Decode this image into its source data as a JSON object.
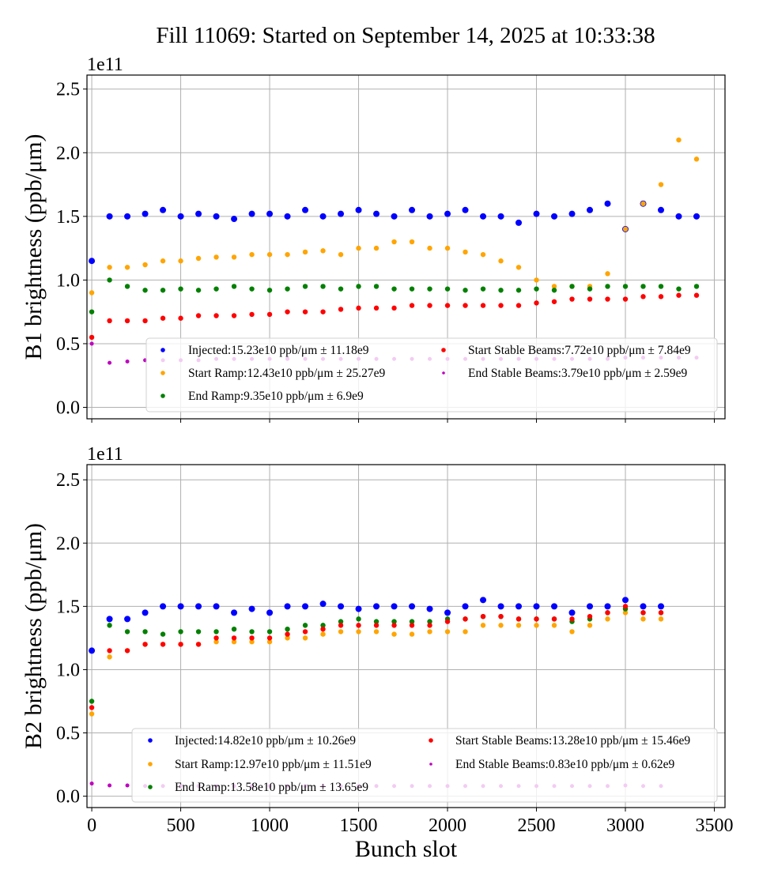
{
  "title": "Fill 11069: Started on September 14, 2025 at 10:33:38",
  "colors": {
    "Injected": "#0000ff",
    "Start Ramp": "#ffa500",
    "End Ramp": "#008000",
    "Start Stable Beams": "#ff0000",
    "End Stable Beams": "#bf00bf",
    "grid": "#b0b0b0"
  },
  "chart_data": [
    {
      "type": "scatter",
      "title": "",
      "ylabel": "B1 brightness (ppb/μm)",
      "xlabel": "",
      "y_offset_label": "1e11",
      "xlim": [
        -27,
        3560
      ],
      "ylim": [
        -0.09,
        2.61
      ],
      "yticks": [
        "0.0",
        "0.5",
        "1.0",
        "1.5",
        "2.0",
        "2.5"
      ],
      "xticks": [
        0,
        500,
        1000,
        1500,
        2000,
        2500,
        3000,
        3500
      ],
      "xtick_labels_shown": false,
      "grid": true,
      "legend_placement": "lower-right",
      "x": [
        0,
        100,
        200,
        300,
        400,
        500,
        600,
        700,
        800,
        900,
        1000,
        1100,
        1200,
        1300,
        1400,
        1500,
        1600,
        1700,
        1800,
        1900,
        2000,
        2100,
        2200,
        2300,
        2400,
        2500,
        2600,
        2700,
        2800,
        2900,
        3000,
        3100,
        3200,
        3300,
        3400
      ],
      "series": [
        {
          "name": "Injected",
          "legend": "Injected:15.23e10 ppb/μm ± 11.18e9",
          "values": [
            1.15,
            1.5,
            1.5,
            1.52,
            1.55,
            1.5,
            1.52,
            1.5,
            1.48,
            1.52,
            1.52,
            1.5,
            1.55,
            1.5,
            1.52,
            1.55,
            1.52,
            1.5,
            1.55,
            1.5,
            1.52,
            1.55,
            1.5,
            1.5,
            1.45,
            1.52,
            1.5,
            1.52,
            1.55,
            1.6,
            1.4,
            1.6,
            1.55,
            1.5,
            1.5
          ]
        },
        {
          "name": "Start Ramp",
          "legend": "Start Ramp:12.43e10 ppb/μm ± 25.27e9",
          "values": [
            0.9,
            1.1,
            1.1,
            1.12,
            1.15,
            1.15,
            1.17,
            1.18,
            1.18,
            1.2,
            1.2,
            1.2,
            1.22,
            1.23,
            1.2,
            1.25,
            1.25,
            1.3,
            1.3,
            1.25,
            1.25,
            1.22,
            1.2,
            1.15,
            1.1,
            1.0,
            0.95,
            0.95,
            0.95,
            1.05,
            1.4,
            1.6,
            1.75,
            2.1,
            1.95
          ]
        },
        {
          "name": "End Ramp",
          "legend": "End Ramp:9.35e10 ppb/μm ± 6.9e9",
          "values": [
            0.75,
            1.0,
            0.95,
            0.92,
            0.92,
            0.93,
            0.92,
            0.93,
            0.95,
            0.93,
            0.92,
            0.93,
            0.95,
            0.95,
            0.93,
            0.95,
            0.95,
            0.93,
            0.93,
            0.93,
            0.93,
            0.92,
            0.93,
            0.92,
            0.92,
            0.93,
            0.92,
            0.95,
            0.93,
            0.95,
            0.95,
            0.95,
            0.95,
            0.93,
            0.95
          ]
        },
        {
          "name": "Start Stable Beams",
          "legend": "Start Stable Beams:7.72e10 ppb/μm ± 7.84e9",
          "values": [
            0.55,
            0.68,
            0.68,
            0.68,
            0.7,
            0.7,
            0.72,
            0.72,
            0.72,
            0.73,
            0.73,
            0.75,
            0.75,
            0.75,
            0.77,
            0.78,
            0.78,
            0.78,
            0.8,
            0.8,
            0.8,
            0.8,
            0.8,
            0.8,
            0.8,
            0.82,
            0.83,
            0.85,
            0.85,
            0.85,
            0.85,
            0.87,
            0.87,
            0.88,
            0.88
          ]
        },
        {
          "name": "End Stable Beams",
          "legend": "End Stable Beams:3.79e10 ppb/μm ± 2.59e9",
          "values": [
            0.5,
            0.35,
            0.36,
            0.37,
            0.37,
            0.37,
            0.37,
            0.38,
            0.38,
            0.38,
            0.38,
            0.38,
            0.38,
            0.38,
            0.38,
            0.38,
            0.38,
            0.38,
            0.38,
            0.38,
            0.38,
            0.38,
            0.38,
            0.38,
            0.38,
            0.38,
            0.38,
            0.38,
            0.38,
            0.38,
            0.39,
            0.39,
            0.39,
            0.39,
            0.39
          ]
        }
      ]
    },
    {
      "type": "scatter",
      "title": "",
      "ylabel": "B2 brightness (ppb/μm)",
      "xlabel": "Bunch slot",
      "y_offset_label": "1e11",
      "xlim": [
        -27,
        3560
      ],
      "ylim": [
        -0.09,
        2.62
      ],
      "yticks": [
        "0.0",
        "0.5",
        "1.0",
        "1.5",
        "2.0",
        "2.5"
      ],
      "xticks": [
        0,
        500,
        1000,
        1500,
        2000,
        2500,
        3000,
        3500
      ],
      "xtick_labels_shown": true,
      "grid": true,
      "legend_placement": "lower-right",
      "x": [
        0,
        100,
        200,
        300,
        400,
        500,
        600,
        700,
        800,
        900,
        1000,
        1100,
        1200,
        1300,
        1400,
        1500,
        1600,
        1700,
        1800,
        1900,
        2000,
        2100,
        2200,
        2300,
        2400,
        2500,
        2600,
        2700,
        2800,
        2900,
        3000,
        3100,
        3200
      ],
      "series": [
        {
          "name": "Injected",
          "legend": "Injected:14.82e10 ppb/μm ± 10.26e9",
          "values": [
            1.15,
            1.4,
            1.4,
            1.45,
            1.5,
            1.5,
            1.5,
            1.5,
            1.45,
            1.48,
            1.45,
            1.5,
            1.5,
            1.52,
            1.5,
            1.48,
            1.5,
            1.5,
            1.5,
            1.48,
            1.45,
            1.5,
            1.55,
            1.5,
            1.5,
            1.5,
            1.5,
            1.45,
            1.5,
            1.5,
            1.55,
            1.5,
            1.5
          ]
        },
        {
          "name": "Start Ramp",
          "legend": "Start Ramp:12.97e10 ppb/μm ± 11.51e9",
          "values": [
            0.65,
            1.1,
            1.15,
            1.2,
            1.2,
            1.2,
            1.2,
            1.22,
            1.22,
            1.22,
            1.22,
            1.25,
            1.25,
            1.28,
            1.3,
            1.3,
            1.3,
            1.28,
            1.28,
            1.3,
            1.3,
            1.3,
            1.35,
            1.35,
            1.35,
            1.35,
            1.35,
            1.3,
            1.35,
            1.4,
            1.45,
            1.4,
            1.4
          ]
        },
        {
          "name": "End Ramp",
          "legend": "End Ramp:13.58e10 ppb/μm ± 13.65e9",
          "values": [
            0.75,
            1.35,
            1.3,
            1.3,
            1.28,
            1.3,
            1.3,
            1.3,
            1.32,
            1.3,
            1.3,
            1.32,
            1.35,
            1.35,
            1.38,
            1.4,
            1.38,
            1.38,
            1.38,
            1.38,
            1.4,
            1.4,
            1.42,
            1.42,
            1.4,
            1.4,
            1.4,
            1.38,
            1.4,
            1.45,
            1.48,
            1.45,
            1.45
          ]
        },
        {
          "name": "Start Stable Beams",
          "legend": "Start Stable Beams:13.28e10 ppb/μm ± 15.46e9",
          "values": [
            0.7,
            1.15,
            1.15,
            1.2,
            1.2,
            1.2,
            1.2,
            1.25,
            1.25,
            1.25,
            1.25,
            1.28,
            1.3,
            1.32,
            1.35,
            1.35,
            1.35,
            1.35,
            1.35,
            1.35,
            1.38,
            1.4,
            1.42,
            1.42,
            1.4,
            1.4,
            1.4,
            1.4,
            1.42,
            1.45,
            1.5,
            1.45,
            1.45
          ]
        },
        {
          "name": "End Stable Beams",
          "legend": "End Stable Beams:0.83e10 ppb/μm ± 0.62e9",
          "values": [
            0.1,
            0.085,
            0.085,
            0.08,
            0.08,
            0.08,
            0.08,
            0.08,
            0.08,
            0.08,
            0.08,
            0.08,
            0.08,
            0.08,
            0.08,
            0.08,
            0.08,
            0.08,
            0.08,
            0.08,
            0.08,
            0.08,
            0.08,
            0.08,
            0.08,
            0.08,
            0.08,
            0.08,
            0.08,
            0.08,
            0.085,
            0.08,
            0.08
          ]
        }
      ]
    }
  ]
}
